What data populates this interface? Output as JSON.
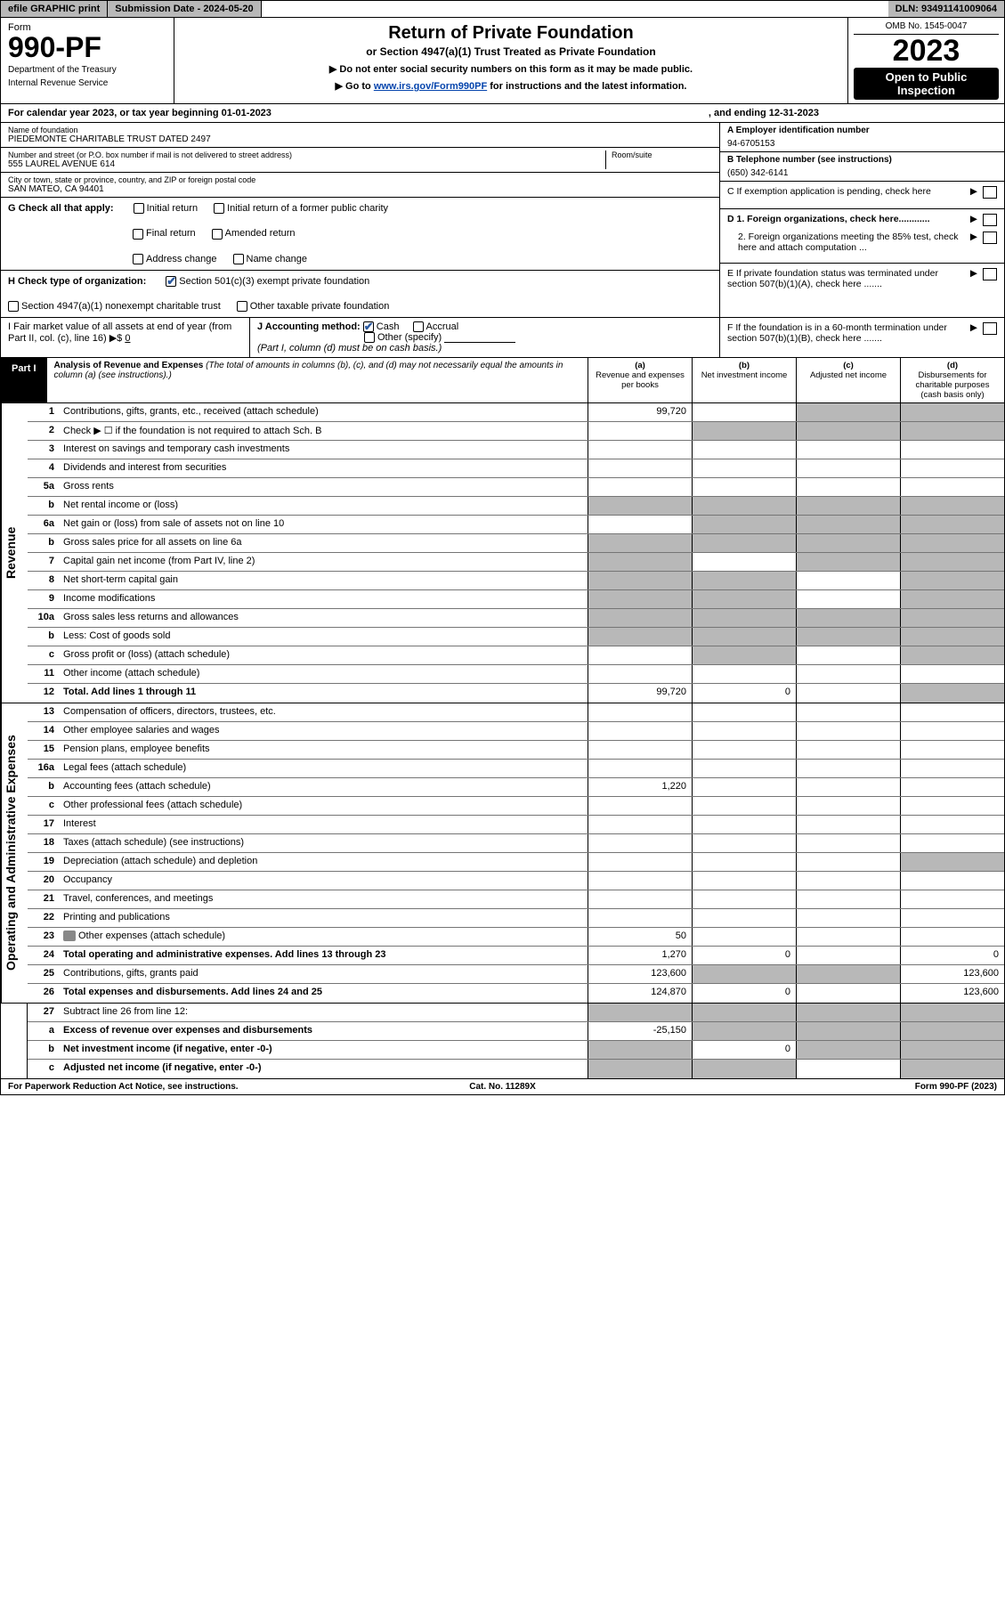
{
  "top": {
    "efile": "efile GRAPHIC print",
    "submission": "Submission Date - 2024-05-20",
    "dln": "DLN: 93491141009064"
  },
  "header": {
    "formLabel": "Form",
    "formNum": "990-PF",
    "dept": "Department of the Treasury",
    "irs": "Internal Revenue Service",
    "title": "Return of Private Foundation",
    "sub1": "or Section 4947(a)(1) Trust Treated as Private Foundation",
    "sub2a": "▶ Do not enter social security numbers on this form as it may be made public.",
    "sub2b": "▶ Go to ",
    "link": "www.irs.gov/Form990PF",
    "sub2c": " for instructions and the latest information.",
    "omb": "OMB No. 1545-0047",
    "year": "2023",
    "open": "Open to Public Inspection"
  },
  "calendar": {
    "left": "For calendar year 2023, or tax year beginning 01-01-2023",
    "right": ", and ending 12-31-2023"
  },
  "info": {
    "nameLabel": "Name of foundation",
    "name": "PIEDEMONTE CHARITABLE TRUST DATED 2497",
    "addrLabel": "Number and street (or P.O. box number if mail is not delivered to street address)",
    "addr": "555 LAUREL AVENUE 614",
    "roomLabel": "Room/suite",
    "cityLabel": "City or town, state or province, country, and ZIP or foreign postal code",
    "city": "SAN MATEO, CA  94401",
    "einLabel": "A Employer identification number",
    "ein": "94-6705153",
    "telLabel": "B Telephone number (see instructions)",
    "tel": "(650) 342-6141",
    "cText": "C If exemption application is pending, check here",
    "gLabel": "G Check all that apply:",
    "g1": "Initial return",
    "g2": "Initial return of a former public charity",
    "g3": "Final return",
    "g4": "Amended return",
    "g5": "Address change",
    "g6": "Name change",
    "hLabel": "H Check type of organization:",
    "h1": "Section 501(c)(3) exempt private foundation",
    "h2": "Section 4947(a)(1) nonexempt charitable trust",
    "h3": "Other taxable private foundation",
    "iLabel": "I Fair market value of all assets at end of year (from Part II, col. (c), line 16) ▶$ ",
    "iVal": "0",
    "jLabel": "J Accounting method:",
    "j1": "Cash",
    "j2": "Accrual",
    "j3": "Other (specify)",
    "jNote": "(Part I, column (d) must be on cash basis.)",
    "d1": "D 1. Foreign organizations, check here............",
    "d2": "2. Foreign organizations meeting the 85% test, check here and attach computation ...",
    "eText": "E  If private foundation status was terminated under section 507(b)(1)(A), check here .......",
    "fText": "F  If the foundation is in a 60-month termination under section 507(b)(1)(B), check here ......."
  },
  "part1": {
    "label": "Part I",
    "title": "Analysis of Revenue and Expenses",
    "subtitle": "(The total of amounts in columns (b), (c), and (d) may not necessarily equal the amounts in column (a) (see instructions).)",
    "colA": "(a)",
    "colAtxt": "Revenue and expenses per books",
    "colB": "(b)",
    "colBtxt": "Net investment income",
    "colC": "(c)",
    "colCtxt": "Adjusted net income",
    "colD": "(d)",
    "colDtxt": "Disbursements for charitable purposes (cash basis only)"
  },
  "sideRevenue": "Revenue",
  "sideExpenses": "Operating and Administrative Expenses",
  "rows": {
    "r1": {
      "n": "1",
      "d": "Contributions, gifts, grants, etc., received (attach schedule)",
      "a": "99,720",
      "greyB": false,
      "greyC": true,
      "greyD": true
    },
    "r2": {
      "n": "2",
      "d": "Check ▶ ☐ if the foundation is not required to attach Sch. B",
      "greyB": true,
      "greyC": true,
      "greyD": true
    },
    "r3": {
      "n": "3",
      "d": "Interest on savings and temporary cash investments"
    },
    "r4": {
      "n": "4",
      "d": "Dividends and interest from securities"
    },
    "r5a": {
      "n": "5a",
      "d": "Gross rents"
    },
    "r5b": {
      "n": "b",
      "d": "Net rental income or (loss)",
      "greyA": true,
      "greyB": true,
      "greyC": true,
      "greyD": true
    },
    "r6a": {
      "n": "6a",
      "d": "Net gain or (loss) from sale of assets not on line 10",
      "greyB": true,
      "greyC": true,
      "greyD": true
    },
    "r6b": {
      "n": "b",
      "d": "Gross sales price for all assets on line 6a",
      "greyA": true,
      "greyB": true,
      "greyC": true,
      "greyD": true
    },
    "r7": {
      "n": "7",
      "d": "Capital gain net income (from Part IV, line 2)",
      "greyA": true,
      "greyC": true,
      "greyD": true
    },
    "r8": {
      "n": "8",
      "d": "Net short-term capital gain",
      "greyA": true,
      "greyB": true,
      "greyD": true
    },
    "r9": {
      "n": "9",
      "d": "Income modifications",
      "greyA": true,
      "greyB": true,
      "greyD": true
    },
    "r10a": {
      "n": "10a",
      "d": "Gross sales less returns and allowances",
      "greyA": true,
      "greyB": true,
      "greyC": true,
      "greyD": true
    },
    "r10b": {
      "n": "b",
      "d": "Less: Cost of goods sold",
      "greyA": true,
      "greyB": true,
      "greyC": true,
      "greyD": true
    },
    "r10c": {
      "n": "c",
      "d": "Gross profit or (loss) (attach schedule)",
      "greyB": true,
      "greyD": true
    },
    "r11": {
      "n": "11",
      "d": "Other income (attach schedule)"
    },
    "r12": {
      "n": "12",
      "d": "Total. Add lines 1 through 11",
      "bold": true,
      "a": "99,720",
      "b": "0",
      "greyD": true
    },
    "r13": {
      "n": "13",
      "d": "Compensation of officers, directors, trustees, etc."
    },
    "r14": {
      "n": "14",
      "d": "Other employee salaries and wages"
    },
    "r15": {
      "n": "15",
      "d": "Pension plans, employee benefits"
    },
    "r16a": {
      "n": "16a",
      "d": "Legal fees (attach schedule)"
    },
    "r16b": {
      "n": "b",
      "d": "Accounting fees (attach schedule)",
      "a": "1,220"
    },
    "r16c": {
      "n": "c",
      "d": "Other professional fees (attach schedule)"
    },
    "r17": {
      "n": "17",
      "d": "Interest"
    },
    "r18": {
      "n": "18",
      "d": "Taxes (attach schedule) (see instructions)"
    },
    "r19": {
      "n": "19",
      "d": "Depreciation (attach schedule) and depletion",
      "greyD": true
    },
    "r20": {
      "n": "20",
      "d": "Occupancy"
    },
    "r21": {
      "n": "21",
      "d": "Travel, conferences, and meetings"
    },
    "r22": {
      "n": "22",
      "d": "Printing and publications"
    },
    "r23": {
      "n": "23",
      "d": "Other expenses (attach schedule)",
      "icon": true,
      "a": "50"
    },
    "r24": {
      "n": "24",
      "d": "Total operating and administrative expenses. Add lines 13 through 23",
      "bold": true,
      "a": "1,270",
      "b": "0",
      "d2": "0"
    },
    "r25": {
      "n": "25",
      "d": "Contributions, gifts, grants paid",
      "a": "123,600",
      "greyB": true,
      "greyC": true,
      "d2": "123,600"
    },
    "r26": {
      "n": "26",
      "d": "Total expenses and disbursements. Add lines 24 and 25",
      "bold": true,
      "a": "124,870",
      "b": "0",
      "d2": "123,600"
    },
    "r27": {
      "n": "27",
      "d": "Subtract line 26 from line 12:",
      "greyA": true,
      "greyB": true,
      "greyC": true,
      "greyD": true
    },
    "r27a": {
      "n": "a",
      "d": "Excess of revenue over expenses and disbursements",
      "bold": true,
      "a": "-25,150",
      "greyB": true,
      "greyC": true,
      "greyD": true
    },
    "r27b": {
      "n": "b",
      "d": "Net investment income (if negative, enter -0-)",
      "bold": true,
      "greyA": true,
      "b": "0",
      "greyC": true,
      "greyD": true
    },
    "r27c": {
      "n": "c",
      "d": "Adjusted net income (if negative, enter -0-)",
      "bold": true,
      "greyA": true,
      "greyB": true,
      "greyD": true
    }
  },
  "footer": {
    "f1": "For Paperwork Reduction Act Notice, see instructions.",
    "f2": "Cat. No. 11289X",
    "f3": "Form 990-PF (2023)"
  },
  "colors": {
    "grey": "#b8b8b8",
    "link": "#0645ad"
  }
}
